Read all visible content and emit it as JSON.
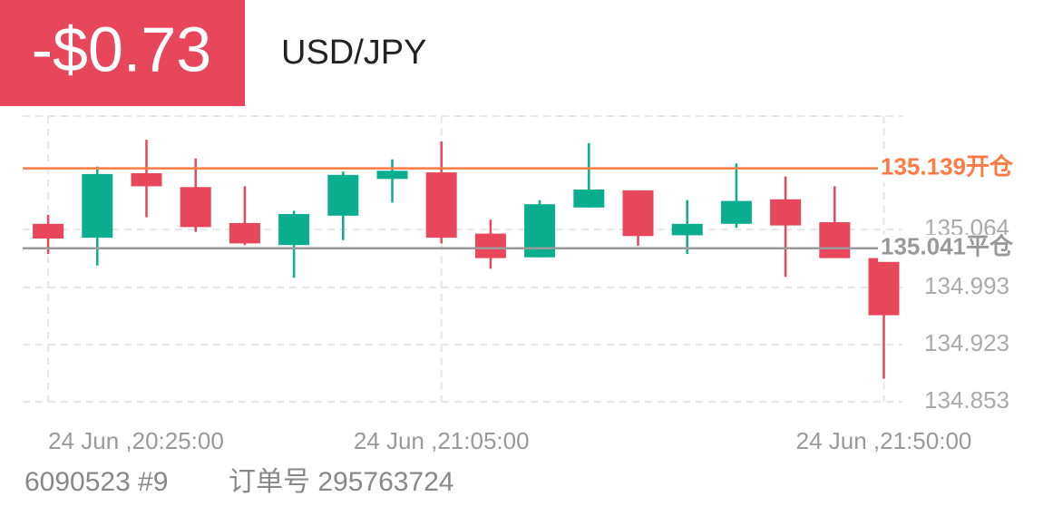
{
  "header": {
    "pnl": "-$0.73",
    "symbol": "USD/JPY"
  },
  "chart_data": {
    "type": "candlestick",
    "categories": [
      "24 Jun ,20:25:00",
      null,
      null,
      null,
      null,
      null,
      null,
      null,
      "24 Jun ,21:05:00",
      null,
      null,
      null,
      null,
      null,
      null,
      null,
      null,
      "24 Jun ,21:50:00"
    ],
    "open": [
      135.071,
      135.054,
      135.133,
      135.116,
      135.072,
      135.045,
      135.081,
      135.126,
      135.134,
      135.059,
      135.03,
      135.091,
      135.112,
      135.057,
      135.071,
      135.101,
      135.073,
      135.029
    ],
    "high": [
      135.082,
      135.141,
      135.174,
      135.151,
      135.117,
      135.087,
      135.135,
      135.15,
      135.172,
      135.076,
      135.1,
      135.17,
      135.112,
      135.1,
      135.145,
      135.129,
      135.117,
      135.029
    ],
    "low": [
      135.034,
      135.02,
      135.079,
      135.061,
      135.045,
      135.005,
      135.051,
      135.097,
      135.047,
      135.016,
      135.03,
      135.091,
      135.044,
      135.034,
      135.066,
      135.006,
      135.029,
      134.881
    ],
    "close": [
      135.053,
      135.132,
      135.117,
      135.067,
      135.047,
      135.083,
      135.131,
      135.136,
      135.054,
      135.029,
      135.095,
      135.113,
      135.056,
      135.071,
      135.099,
      135.069,
      135.029,
      134.959
    ],
    "up_color": "#0aae8e",
    "down_color": "#e8465a",
    "ylim": [
      134.853,
      135.203
    ],
    "yticks": [
      134.853,
      134.923,
      134.993,
      135.064
    ],
    "grid": true,
    "open_line": {
      "value": 135.139,
      "label": "135.139开仓",
      "color": "#ff7a45"
    },
    "close_line": {
      "value": 135.041,
      "label": "135.041平仓",
      "color": "#999999"
    }
  },
  "footer": {
    "account": "6090523 #9",
    "order": "订单号 295763724"
  }
}
